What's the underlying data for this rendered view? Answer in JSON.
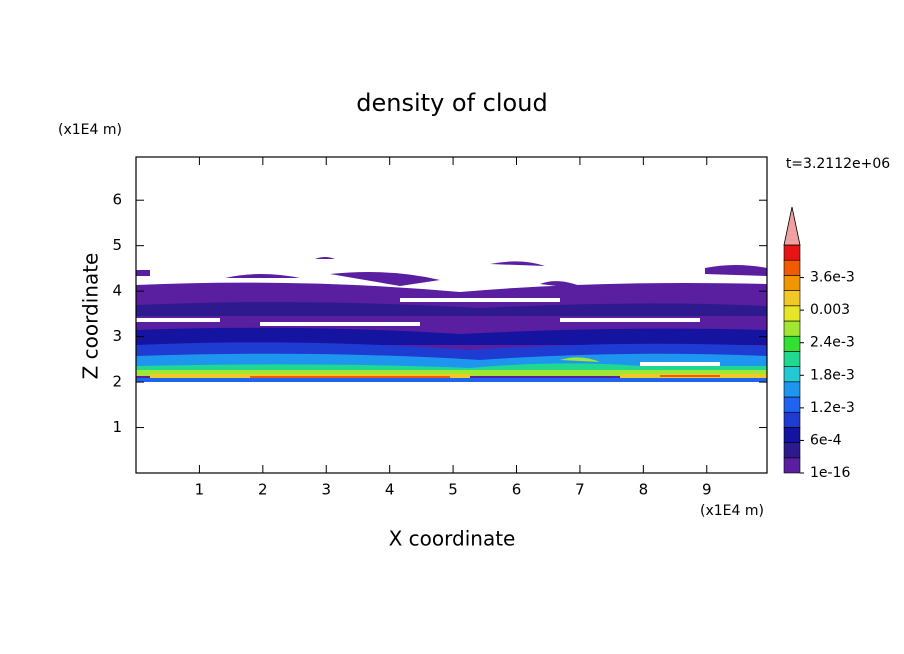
{
  "chart_data": {
    "type": "contour",
    "title": "density of cloud",
    "xlabel": "X coordinate",
    "ylabel": "Z coordinate",
    "x_unit": "(x1E4 m)",
    "y_unit": "(x1E4 m)",
    "annotation": "t=3.2112e+06",
    "xlim": [
      0,
      9.95
    ],
    "ylim": [
      0,
      6.95
    ],
    "xticks": [
      1,
      2,
      3,
      4,
      5,
      6,
      7,
      8,
      9
    ],
    "yticks": [
      1,
      2,
      3,
      4,
      5,
      6
    ],
    "colorbar": {
      "clim": [
        0,
        0.0042
      ],
      "ticks": [
        1e-16,
        {
          "value": 0.0006,
          "label": "6e-4"
        },
        {
          "value": 0.0012,
          "label": "1.2e-3"
        },
        {
          "value": 0.0018,
          "label": "1.8e-3"
        },
        {
          "value": 0.0024,
          "label": "2.4e-3"
        },
        0.003,
        {
          "value": 0.0036,
          "label": "3.6e-3"
        }
      ],
      "colors": [
        "#5a1fa0",
        "#2e1a8e",
        "#1414a0",
        "#1e3cd2",
        "#1e64f0",
        "#1e96f0",
        "#22c8d2",
        "#20d890",
        "#32e032",
        "#a0e632",
        "#e6e628",
        "#f0c828",
        "#f09600",
        "#f05a00",
        "#e61414"
      ],
      "over_color": "#f0a0a0"
    }
  }
}
